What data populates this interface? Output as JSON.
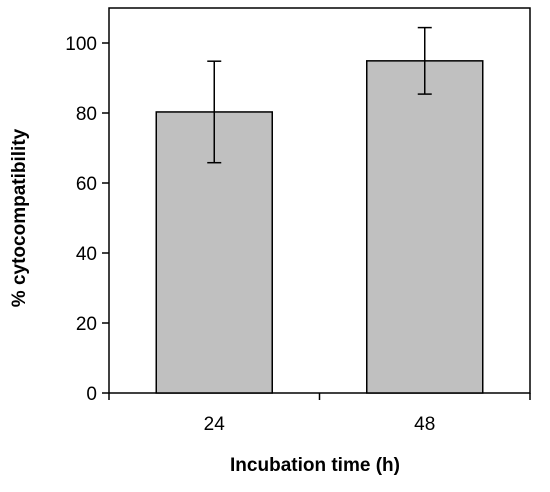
{
  "chart_data": {
    "type": "bar",
    "title": "",
    "xlabel": "Incubation time (h)",
    "ylabel": "% cytocompatibility",
    "categories": [
      "24",
      "48"
    ],
    "series": [
      {
        "values": [
          80.3,
          94.9
        ],
        "error": [
          14.5,
          9.5
        ]
      }
    ],
    "ylim": [
      0,
      110
    ],
    "yticks": [
      "0",
      "20",
      "40",
      "60",
      "80",
      "100"
    ],
    "grid": false,
    "legend": "none",
    "bar_color": "#c0c0c0",
    "bar_edge_color": "#000000"
  }
}
